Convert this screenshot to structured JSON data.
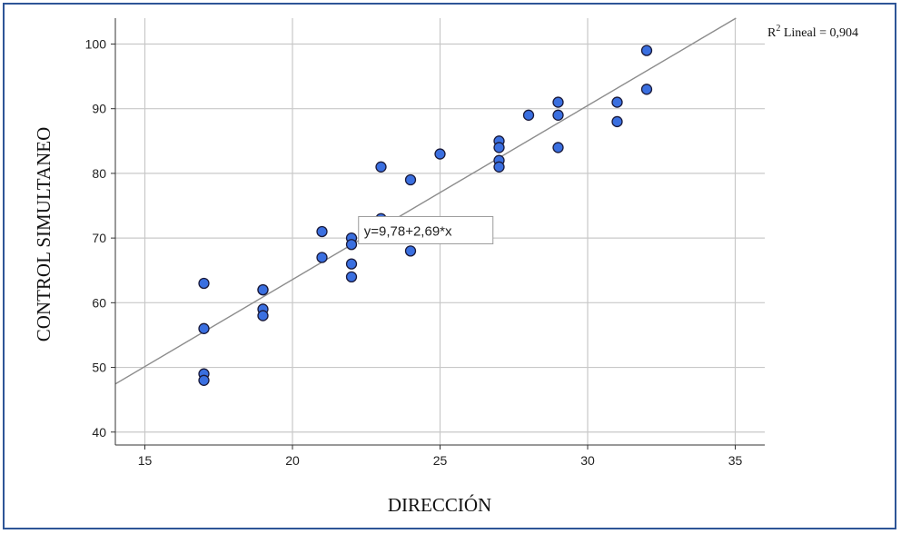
{
  "chart_data": {
    "type": "scatter",
    "xlabel": "DIRECCIÓN",
    "ylabel": "CONTROL SIMULTANEO",
    "xlim": [
      14,
      36
    ],
    "ylim": [
      38,
      104
    ],
    "x_ticks": [
      15,
      20,
      25,
      30,
      35
    ],
    "y_ticks": [
      40,
      50,
      60,
      70,
      80,
      90,
      100
    ],
    "grid": true,
    "r2_label": {
      "prefix": "R",
      "sup": "2",
      "text": " Lineal = 0,904"
    },
    "fit_line": {
      "intercept": 9.78,
      "slope": 2.69,
      "label": "y=9,78+2,69*x"
    },
    "marker_color": "#3a6fe0",
    "points": [
      {
        "x": 17,
        "y": 63
      },
      {
        "x": 17,
        "y": 56
      },
      {
        "x": 17,
        "y": 49
      },
      {
        "x": 17,
        "y": 48
      },
      {
        "x": 19,
        "y": 62
      },
      {
        "x": 19,
        "y": 62
      },
      {
        "x": 19,
        "y": 59
      },
      {
        "x": 19,
        "y": 58
      },
      {
        "x": 21,
        "y": 71
      },
      {
        "x": 21,
        "y": 67
      },
      {
        "x": 22,
        "y": 70
      },
      {
        "x": 22,
        "y": 69
      },
      {
        "x": 22,
        "y": 66
      },
      {
        "x": 22,
        "y": 64
      },
      {
        "x": 23,
        "y": 81
      },
      {
        "x": 23,
        "y": 73
      },
      {
        "x": 24,
        "y": 79
      },
      {
        "x": 24,
        "y": 68
      },
      {
        "x": 25,
        "y": 83
      },
      {
        "x": 27,
        "y": 85
      },
      {
        "x": 27,
        "y": 84
      },
      {
        "x": 27,
        "y": 82
      },
      {
        "x": 27,
        "y": 81
      },
      {
        "x": 28,
        "y": 89
      },
      {
        "x": 29,
        "y": 91
      },
      {
        "x": 29,
        "y": 89
      },
      {
        "x": 29,
        "y": 84
      },
      {
        "x": 31,
        "y": 91
      },
      {
        "x": 31,
        "y": 88
      },
      {
        "x": 32,
        "y": 99
      },
      {
        "x": 32,
        "y": 93
      }
    ]
  }
}
